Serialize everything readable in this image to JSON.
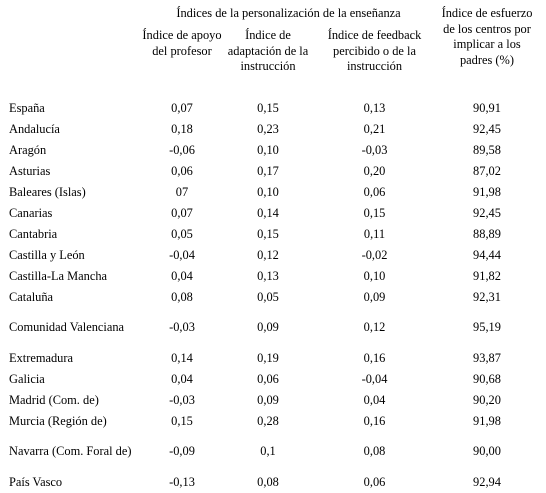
{
  "table": {
    "group_header": "Índices de la personalización de la enseñanza",
    "columns": [
      "Índice de apoyo del profesor",
      "Índice de adaptación de la instrucción",
      "Índice de feedback percibido o de la instrucción",
      "Índice de esfuerzo de los centros por implicar a los padres (%)"
    ],
    "rows": [
      {
        "region": "España",
        "apoyo": "0,07",
        "adaptacion": "0,15",
        "feedback": "0,13",
        "esfuerzo": "90,91"
      },
      {
        "region": "Andalucía",
        "apoyo": "0,18",
        "adaptacion": "0,23",
        "feedback": "0,21",
        "esfuerzo": "92,45"
      },
      {
        "region": "Aragón",
        "apoyo": "-0,06",
        "adaptacion": "0,10",
        "feedback": "-0,03",
        "esfuerzo": "89,58"
      },
      {
        "region": "Asturias",
        "apoyo": "0,06",
        "adaptacion": "0,17",
        "feedback": "0,20",
        "esfuerzo": "87,02"
      },
      {
        "region": "Baleares (Islas)",
        "apoyo": "07",
        "adaptacion": "0,10",
        "feedback": "0,06",
        "esfuerzo": "91,98"
      },
      {
        "region": "Canarias",
        "apoyo": "0,07",
        "adaptacion": "0,14",
        "feedback": "0,15",
        "esfuerzo": "92,45"
      },
      {
        "region": "Cantabria",
        "apoyo": "0,05",
        "adaptacion": "0,15",
        "feedback": "0,11",
        "esfuerzo": "88,89"
      },
      {
        "region": "Castilla y León",
        "apoyo": "-0,04",
        "adaptacion": "0,12",
        "feedback": "-0,02",
        "esfuerzo": "94,44"
      },
      {
        "region": "Castilla-La Mancha",
        "apoyo": "0,04",
        "adaptacion": "0,13",
        "feedback": "0,10",
        "esfuerzo": "91,82"
      },
      {
        "region": "Cataluña",
        "apoyo": "0,08",
        "adaptacion": "0,05",
        "feedback": "0,09",
        "esfuerzo": "92,31"
      },
      {
        "region": "Comunidad Valenciana",
        "apoyo": "-0,03",
        "adaptacion": "0,09",
        "feedback": "0,12",
        "esfuerzo": "95,19"
      },
      {
        "region": "Extremadura",
        "apoyo": "0,14",
        "adaptacion": "0,19",
        "feedback": "0,16",
        "esfuerzo": "93,87"
      },
      {
        "region": "Galicia",
        "apoyo": "0,04",
        "adaptacion": "0,06",
        "feedback": "-0,04",
        "esfuerzo": "90,68"
      },
      {
        "region": "Madrid (Com. de)",
        "apoyo": "-0,03",
        "adaptacion": "0,09",
        "feedback": "0,04",
        "esfuerzo": "90,20"
      },
      {
        "region": "Murcia (Región de)",
        "apoyo": "0,15",
        "adaptacion": "0,28",
        "feedback": "0,16",
        "esfuerzo": "91,98"
      },
      {
        "region": "Navarra (Com. Foral de)",
        "apoyo": "-0,09",
        "adaptacion": "0,1",
        "feedback": "0,08",
        "esfuerzo": "90,00"
      },
      {
        "region": "País Vasco",
        "apoyo": "-0,13",
        "adaptacion": "0,08",
        "feedback": "0,06",
        "esfuerzo": "92,94"
      }
    ]
  }
}
